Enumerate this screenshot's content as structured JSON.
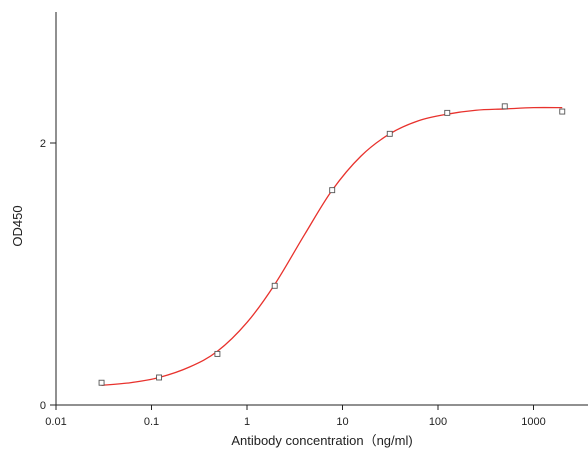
{
  "chart_data": {
    "type": "scatter",
    "title": "",
    "xlabel": "Antibody concentration（ng/ml)",
    "ylabel": "OD450",
    "x_scale": "log",
    "xlim": [
      0.01,
      4000
    ],
    "ylim": [
      0,
      2.93
    ],
    "x_ticks": [
      0.01,
      0.1,
      1,
      10,
      100,
      1000
    ],
    "x_tick_labels": [
      "0.01",
      "0.1",
      "1",
      "10",
      "100",
      "1000"
    ],
    "y_ticks": [
      0,
      2
    ],
    "y_tick_labels": [
      "0",
      "2"
    ],
    "grid": false,
    "legend": "none",
    "series": [
      {
        "kind": "points",
        "marker": "open-square",
        "x": [
          0.03,
          0.12,
          0.49,
          1.95,
          7.8,
          31.25,
          125,
          500,
          2000
        ],
        "y": [
          0.17,
          0.21,
          0.39,
          0.91,
          1.64,
          2.07,
          2.23,
          2.28,
          2.24
        ]
      },
      {
        "kind": "fit-curve",
        "x": [
          0.03,
          0.06,
          0.12,
          0.25,
          0.49,
          1,
          1.95,
          4,
          7.8,
          15.6,
          31.25,
          62.5,
          125,
          250,
          500,
          1000,
          2000
        ],
        "y": [
          0.15,
          0.17,
          0.21,
          0.29,
          0.41,
          0.63,
          0.92,
          1.3,
          1.64,
          1.9,
          2.07,
          2.17,
          2.22,
          2.25,
          2.26,
          2.27,
          2.27
        ]
      }
    ],
    "colors": {
      "curve": "#e8322d",
      "points": "#555555",
      "axis": "#222222"
    }
  }
}
